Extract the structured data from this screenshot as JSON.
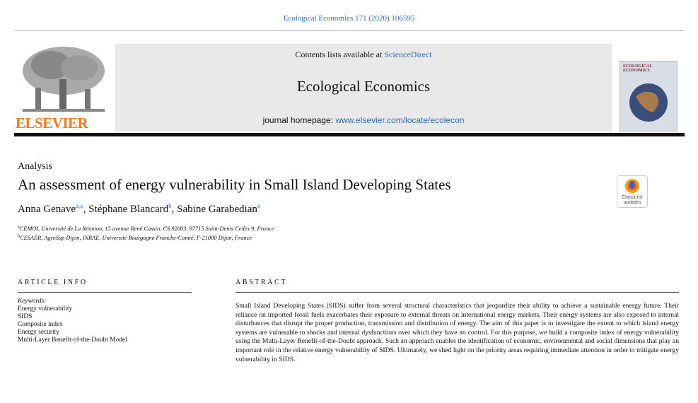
{
  "citation": "Ecological Economics 171 (2020) 106595",
  "header": {
    "contents_prefix": "Contents lists available at ",
    "contents_link": "ScienceDirect",
    "journal": "Ecological Economics",
    "homepage_prefix": "journal homepage: ",
    "homepage_link": "www.elsevier.com/locate/ecolecon",
    "publisher": "ELSEVIER",
    "cover_title": "ECOLOGICAL ECONOMICS"
  },
  "section": "Analysis",
  "title": "An assessment of energy vulnerability in Small Island Developing States",
  "badge": [
    "Check for",
    "updates"
  ],
  "author_separator": ", ",
  "authors": [
    {
      "name": "Anna Genave",
      "sup": "a,⁎"
    },
    {
      "name": "Stéphane Blancard",
      "sup": "b"
    },
    {
      "name": "Sabine Garabedian",
      "sup": "a"
    }
  ],
  "affiliations": [
    {
      "sup": "a",
      "text": "CEMOI, Université de La Réunion, 15 avenue René Cassin, CS 92003, 97715 Saint-Denis Cedex 9, France"
    },
    {
      "sup": "b",
      "text": "CESAER, AgroSup Dijon, INRAE, Université Bourgogne Franche-Comté, F-21000 Dijon, France"
    }
  ],
  "article_info": {
    "heading": "ARTICLE INFO",
    "keywords_label": "Keywords:",
    "keywords": [
      "Energy vulnerability",
      "SIDS",
      "Composite index",
      "Energy security",
      "Multi-Layer Benefit-of-the-Doubt Model"
    ]
  },
  "abstract": {
    "heading": "ABSTRACT",
    "text": "Small Island Developing States (SIDS) suffer from several structural characteristics that jeopardize their ability to achieve a sustainable energy future. Their reliance on imported fossil fuels exacerbates their exposure to external threats on international energy markets. Their energy systems are also exposed to internal disturbances that disrupt the proper production, transmission and distribution of energy. The aim of this paper is to investigate the extent to which island energy systems are vulnerable to shocks and internal dysfunctions over which they have no control. For this purpose, we build a composite index of energy vulnerability using the Multi-Layer Benefit-of-the-Doubt approach. Such an approach enables the identification of economic, environmental and social dimensions that play an important role in the relative energy vulnerability of SIDS. Ultimately, we shed light on the priority areas requiring immediate attention in order to mitigate energy vulnerability in SIDS."
  }
}
